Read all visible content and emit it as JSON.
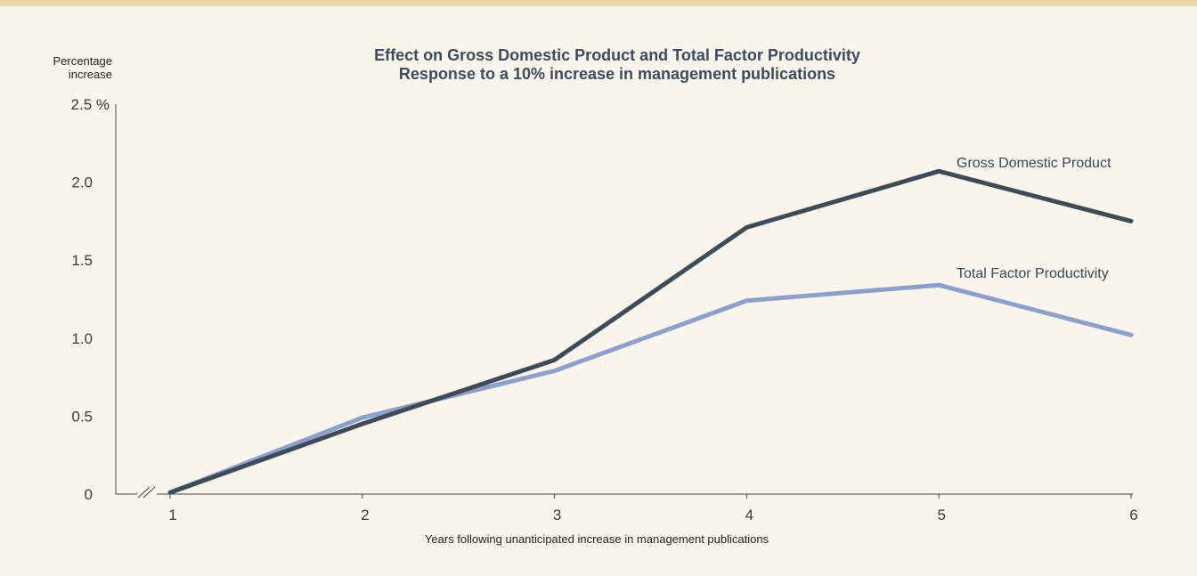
{
  "chart_data": {
    "type": "line",
    "title": "Effect on Gross Domestic Product and Total Factor Productivity",
    "subtitle": "Response to a 10% increase in management publications",
    "xlabel": "Years following unanticipated increase in management publications",
    "ylabel": "Percentage\nincrease",
    "x": [
      1,
      2,
      3,
      4,
      5,
      6
    ],
    "xlim": [
      0.7,
      6.0
    ],
    "ylim": [
      0,
      2.5
    ],
    "yticks": [
      {
        "value": 0,
        "label": "0"
      },
      {
        "value": 0.5,
        "label": "0.5"
      },
      {
        "value": 1.0,
        "label": "1.0"
      },
      {
        "value": 1.5,
        "label": "1.5"
      },
      {
        "value": 2.0,
        "label": "2.0"
      },
      {
        "value": 2.5,
        "label": "2.5 %"
      }
    ],
    "xticks": [
      {
        "value": 1,
        "label": "1"
      },
      {
        "value": 2,
        "label": "2"
      },
      {
        "value": 3,
        "label": "3"
      },
      {
        "value": 4,
        "label": "4"
      },
      {
        "value": 5,
        "label": "5"
      },
      {
        "value": 6,
        "label": "6"
      }
    ],
    "grid": false,
    "legend": "inline labels at line ends",
    "series": [
      {
        "name": "Gross Domestic Product",
        "values": [
          0.01,
          0.45,
          0.86,
          1.71,
          2.07,
          1.75
        ],
        "color": "#3f4b57"
      },
      {
        "name": "Total Factor Productivity",
        "values": [
          0.01,
          0.49,
          0.79,
          1.24,
          1.34,
          1.02
        ],
        "color": "#8e9fcb"
      }
    ]
  }
}
